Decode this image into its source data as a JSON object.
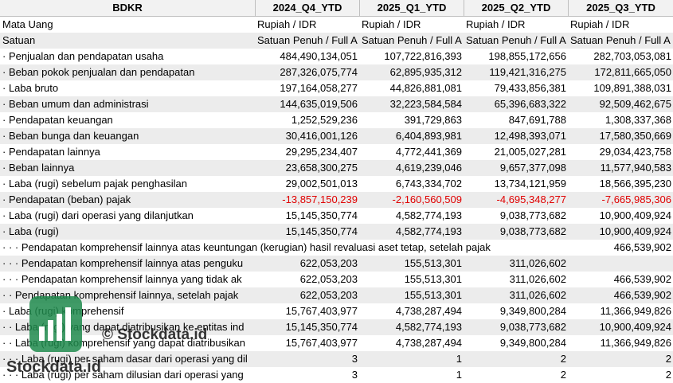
{
  "columns": [
    "BDKR",
    "2024_Q4_YTD",
    "2025_Q1_YTD",
    "2025_Q2_YTD",
    "2025_Q3_YTD"
  ],
  "meta_rows": [
    {
      "label": "Mata Uang",
      "values": [
        "Rupiah / IDR",
        "Rupiah / IDR",
        "Rupiah / IDR",
        "Rupiah / IDR"
      ]
    },
    {
      "label": "Satuan",
      "values": [
        "Satuan Penuh / Full A",
        "Satuan Penuh / Full A",
        "Satuan Penuh / Full A",
        "Satuan Penuh / Full A"
      ]
    }
  ],
  "rows": [
    {
      "label": "· Penjualan dan pendapatan usaha",
      "values": [
        "484,490,134,051",
        "107,722,816,393",
        "198,855,172,656",
        "282,703,053,081"
      ]
    },
    {
      "label": "· Beban pokok penjualan dan pendapatan",
      "values": [
        "287,326,075,774",
        "62,895,935,312",
        "119,421,316,275",
        "172,811,665,050"
      ]
    },
    {
      "label": "· Laba bruto",
      "values": [
        "197,164,058,277",
        "44,826,881,081",
        "79,433,856,381",
        "109,891,388,031"
      ]
    },
    {
      "label": "· Beban umum dan administrasi",
      "values": [
        "144,635,019,506",
        "32,223,584,584",
        "65,396,683,322",
        "92,509,462,675"
      ]
    },
    {
      "label": "· Pendapatan keuangan",
      "values": [
        "1,252,529,236",
        "391,729,863",
        "847,691,788",
        "1,308,337,368"
      ]
    },
    {
      "label": "· Beban bunga dan keuangan",
      "values": [
        "30,416,001,126",
        "6,404,893,981",
        "12,498,393,071",
        "17,580,350,669"
      ]
    },
    {
      "label": "· Pendapatan lainnya",
      "values": [
        "29,295,234,407",
        "4,772,441,369",
        "21,005,027,281",
        "29,034,423,758"
      ]
    },
    {
      "label": "· Beban lainnya",
      "values": [
        "23,658,300,275",
        "4,619,239,046",
        "9,657,377,098",
        "11,577,940,583"
      ]
    },
    {
      "label": "· Laba (rugi) sebelum pajak penghasilan",
      "values": [
        "29,002,501,013",
        "6,743,334,702",
        "13,734,121,959",
        "18,566,395,230"
      ]
    },
    {
      "label": "· Pendapatan (beban) pajak",
      "values": [
        "-13,857,150,239",
        "-2,160,560,509",
        "-4,695,348,277",
        "-7,665,985,306"
      ],
      "negative": true
    },
    {
      "label": "· Laba (rugi) dari operasi yang dilanjutkan",
      "values": [
        "15,145,350,774",
        "4,582,774,193",
        "9,038,773,682",
        "10,900,409,924"
      ]
    },
    {
      "label": "· Laba (rugi)",
      "values": [
        "15,145,350,774",
        "4,582,774,193",
        "9,038,773,682",
        "10,900,409,924"
      ]
    },
    {
      "label": "· · · Pendapatan komprehensif lainnya atas keuntungan (kerugian) hasil revaluasi aset tetap, setelah pajak",
      "values": [
        "",
        "",
        "",
        "466,539,902"
      ],
      "overflow": true
    },
    {
      "label": "· · · Pendapatan komprehensif lainnya atas penguku",
      "values": [
        "622,053,203",
        "155,513,301",
        "311,026,602",
        ""
      ]
    },
    {
      "label": "· · · Pendapatan komprehensif lainnya yang tidak ak",
      "values": [
        "622,053,203",
        "155,513,301",
        "311,026,602",
        "466,539,902"
      ]
    },
    {
      "label": "· · Pendapatan komprehensif lainnya, setelah pajak",
      "values": [
        "622,053,203",
        "155,513,301",
        "311,026,602",
        "466,539,902"
      ]
    },
    {
      "label": "· Laba (rugi) komprehensif",
      "values": [
        "15,767,403,977",
        "4,738,287,494",
        "9,349,800,284",
        "11,366,949,826"
      ]
    },
    {
      "label": "· · Laba (rugi) yang dapat diatribusikan ke entitas ind",
      "values": [
        "15,145,350,774",
        "4,582,774,193",
        "9,038,773,682",
        "10,900,409,924"
      ]
    },
    {
      "label": "· · Laba (rugi) komprehensif yang dapat diatribusikan",
      "values": [
        "15,767,403,977",
        "4,738,287,494",
        "9,349,800,284",
        "11,366,949,826"
      ]
    },
    {
      "label": "· · · Laba (rugi) per saham dasar dari operasi yang dil",
      "values": [
        "3",
        "1",
        "2",
        "2"
      ]
    },
    {
      "label": "· · · Laba (rugi) per saham dilusian dari operasi yang",
      "values": [
        "3",
        "1",
        "2",
        "2"
      ]
    }
  ],
  "watermark": {
    "copyright": "© Stockdata.id",
    "brand": "Stockdata.id"
  },
  "colors": {
    "negative": "#e00000",
    "stripe": "#ececec",
    "logo": "#1f8a4c"
  }
}
